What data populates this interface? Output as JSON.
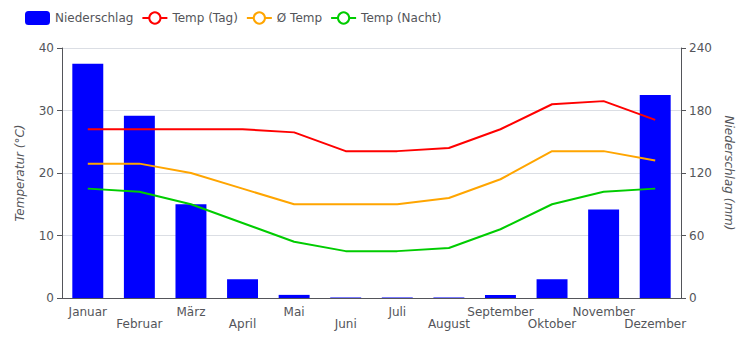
{
  "chart_data": {
    "type": "bar",
    "categories": [
      "Januar",
      "Februar",
      "März",
      "April",
      "Mai",
      "Juni",
      "Juli",
      "August",
      "September",
      "Oktober",
      "November",
      "Dezember"
    ],
    "series": [
      {
        "name": "Niederschlag",
        "type": "bar",
        "axis": "y2",
        "color": "#0000ff",
        "values": [
          225,
          175,
          90,
          18,
          3,
          0.5,
          0.5,
          0.5,
          3,
          18,
          85,
          195
        ]
      },
      {
        "name": "Temp (Tag)",
        "type": "line",
        "color": "#ff0000",
        "values": [
          27,
          27,
          27,
          27,
          26.5,
          23.5,
          23.5,
          24,
          27,
          31,
          31.5,
          28.5
        ]
      },
      {
        "name": "Ø Temp",
        "type": "line",
        "color": "#ffa500",
        "values": [
          21.5,
          21.5,
          20,
          17.5,
          15,
          15,
          15,
          16,
          19,
          23.5,
          23.5,
          22
        ]
      },
      {
        "name": "Temp (Nacht)",
        "type": "line",
        "color": "#00cc00",
        "values": [
          17.5,
          17,
          15,
          12,
          9,
          7.5,
          7.5,
          8,
          11,
          15,
          17,
          17.5
        ]
      }
    ],
    "ylabel": "Temperatur (°C)",
    "y2label": "Niederschlag (mm)",
    "ylim": [
      0,
      40
    ],
    "yticks": [
      0,
      10,
      20,
      30,
      40
    ],
    "y2lim": [
      0,
      240
    ],
    "y2ticks": [
      0,
      60,
      120,
      180,
      240
    ],
    "grid": true,
    "legend": "upper left"
  }
}
